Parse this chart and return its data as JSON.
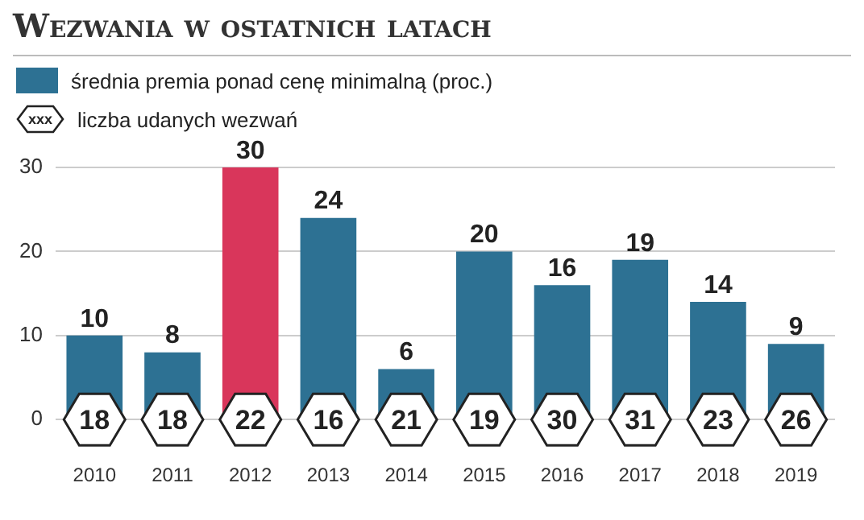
{
  "chart_data": {
    "type": "bar",
    "title": "Wezwania w ostatnich latach",
    "categories": [
      "2010",
      "2011",
      "2012",
      "2013",
      "2014",
      "2015",
      "2016",
      "2017",
      "2018",
      "2019"
    ],
    "series": [
      {
        "name": "średnia premia ponad cenę minimalną (proc.)",
        "color": "#2d7193",
        "colors": [
          "#2d7193",
          "#2d7193",
          "#d9365b",
          "#2d7193",
          "#2d7193",
          "#2d7193",
          "#2d7193",
          "#2d7193",
          "#2d7193",
          "#2d7193"
        ],
        "values": [
          10,
          8,
          30,
          24,
          6,
          20,
          16,
          19,
          14,
          9
        ]
      }
    ],
    "ylim": [
      0,
      30
    ],
    "yticks": [
      0,
      10,
      20,
      30
    ],
    "grid": "y",
    "legend": "top left",
    "data_labels": true,
    "annotations": [
      "xxx",
      "liczba udanych wezwań",
      {
        "text": "18",
        "x": "2010",
        "y": 0
      },
      {
        "text": "18",
        "x": "2011",
        "y": 0
      },
      {
        "text": "22",
        "x": "2012",
        "y": 0
      },
      {
        "text": "16",
        "x": "2013",
        "y": 0
      },
      {
        "text": "21",
        "x": "2014",
        "y": 0
      },
      {
        "text": "19",
        "x": "2015",
        "y": 0
      },
      {
        "text": "30",
        "x": "2016",
        "y": 0
      },
      {
        "text": "31",
        "x": "2017",
        "y": 0
      },
      {
        "text": "23",
        "x": "2018",
        "y": 0
      },
      {
        "text": "26",
        "x": "2019",
        "y": 0
      }
    ]
  }
}
